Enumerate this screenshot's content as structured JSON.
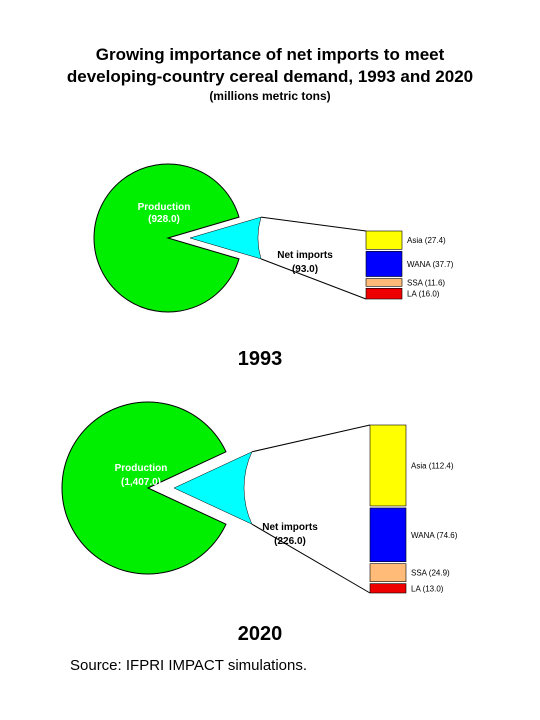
{
  "title_line1": "Growing importance of net imports to meet",
  "title_line2": "developing-country cereal demand, 1993 and 2020",
  "subtitle": "(millions metric tons)",
  "source": "Source:  IFPRI IMPACT simulations.",
  "colors": {
    "production": "#00ee00",
    "net_imports": "#00ffff",
    "Asia": "#ffff00",
    "WANA": "#0000ff",
    "SSA": "#ffbb77",
    "LA": "#ee0000"
  },
  "chart_data": [
    {
      "type": "pie",
      "year_label": "1993",
      "slices": [
        {
          "label": "Production",
          "value_text": "(928.0)",
          "value": 928.0
        },
        {
          "label": "Net imports",
          "value_text": "(93.0)",
          "value": 93.0
        }
      ],
      "breakdown": {
        "type": "bar",
        "stacked": true,
        "categories": [
          "Asia",
          "WANA",
          "SSA",
          "LA"
        ],
        "labels": [
          "Asia (27.4)",
          "WANA (37.7)",
          "SSA (11.6)",
          "LA (16.0)"
        ],
        "values": [
          27.4,
          37.7,
          11.6,
          16.0
        ]
      }
    },
    {
      "type": "pie",
      "year_label": "2020",
      "slices": [
        {
          "label": "Production",
          "value_text": "(1,407.0)",
          "value": 1407.0
        },
        {
          "label": "Net imports",
          "value_text": "(226.0)",
          "value": 226.0
        }
      ],
      "breakdown": {
        "type": "bar",
        "stacked": true,
        "categories": [
          "Asia",
          "WANA",
          "SSA",
          "LA"
        ],
        "labels": [
          "Asia (112.4)",
          "WANA (74.6)",
          "SSA (24.9)",
          "LA (13.0)"
        ],
        "values": [
          112.4,
          74.6,
          24.9,
          13.0
        ]
      }
    }
  ]
}
